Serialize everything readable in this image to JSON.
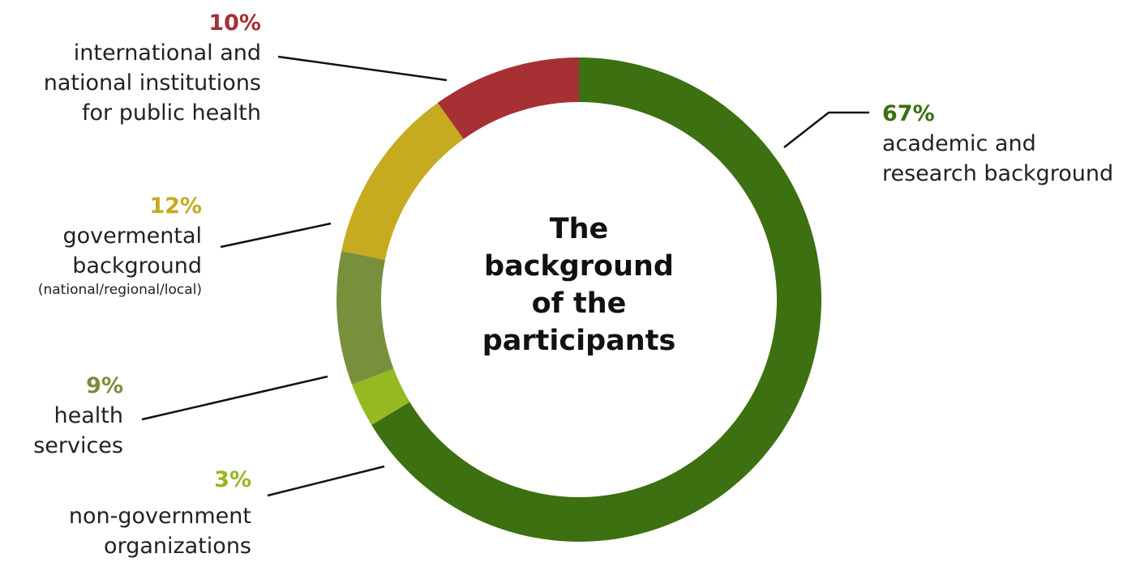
{
  "chart_data": {
    "type": "pie",
    "variant": "donut",
    "title": "The\nbackground\nof the\nparticipants",
    "slices": [
      {
        "label": "academic and\nresearch background",
        "value": 67,
        "pct_label": "67%",
        "color": "#3d7010"
      },
      {
        "label": "non-government\norganizations",
        "value": 3,
        "pct_label": "3%",
        "color": "#96b821"
      },
      {
        "label": "health\nservices",
        "value": 9,
        "pct_label": "9%",
        "color": "#788f3c"
      },
      {
        "label": "govermental\nbackground",
        "sublabel": "(national/regional/local)",
        "value": 12,
        "pct_label": "12%",
        "color": "#c6aa1f"
      },
      {
        "label": "international and\nnational institutions\nfor public health",
        "value": 10,
        "pct_label": "10%",
        "color": "#a63033"
      }
    ]
  }
}
